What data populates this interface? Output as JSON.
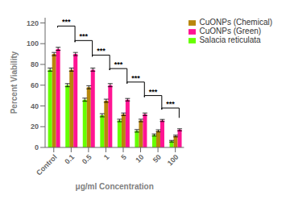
{
  "chart_data": {
    "type": "bar",
    "categories": [
      "Control",
      "0.1",
      "0.5",
      "1",
      "5",
      "10",
      "50",
      "100"
    ],
    "series": [
      {
        "name": "Salacia reticulata",
        "color": "#66ff00",
        "values": [
          75,
          60,
          46,
          31,
          26,
          16,
          12,
          6
        ],
        "errors": [
          1.5,
          1.5,
          1.5,
          1.5,
          1.2,
          1.2,
          1.0,
          0.8
        ]
      },
      {
        "name": "CuONPs (Chemical)",
        "color": "#b8860b",
        "values": [
          90,
          75,
          58,
          45,
          32,
          26,
          16,
          11
        ],
        "errors": [
          1.5,
          1.5,
          1.5,
          1.5,
          1.2,
          1.2,
          1.0,
          0.8
        ]
      },
      {
        "name": "CuONPs (Green)",
        "color": "#ff1493",
        "values": [
          95,
          90,
          75,
          60,
          46,
          32,
          26,
          17
        ],
        "errors": [
          1.5,
          1.5,
          1.5,
          1.5,
          1.2,
          1.2,
          1.0,
          1.0
        ]
      }
    ],
    "xlabel": "μg/ml Concentration",
    "ylabel": "Percent Viability",
    "ylim": [
      0,
      125
    ],
    "yticks": [
      0,
      20,
      40,
      60,
      80,
      100,
      120
    ],
    "grid": false,
    "legend": "right",
    "annotations": [
      {
        "text": "***",
        "x": [
          "Control",
          "0.1"
        ],
        "y": 117,
        "y_end": 103
      },
      {
        "text": "***",
        "x": [
          "0.1",
          "0.5"
        ],
        "y": 103,
        "y_end": 89
      },
      {
        "text": "***",
        "x": [
          "0.5",
          "1"
        ],
        "y": 89,
        "y_end": 76
      },
      {
        "text": "***",
        "x": [
          "1",
          "5"
        ],
        "y": 76,
        "y_end": 63
      },
      {
        "text": "***",
        "x": [
          "5",
          "10"
        ],
        "y": 63,
        "y_end": 50
      },
      {
        "text": "***",
        "x": [
          "10",
          "50"
        ],
        "y": 50,
        "y_end": 38
      },
      {
        "text": "***",
        "x": [
          "50",
          "100"
        ],
        "y": 38,
        "y_end": 30
      }
    ]
  }
}
